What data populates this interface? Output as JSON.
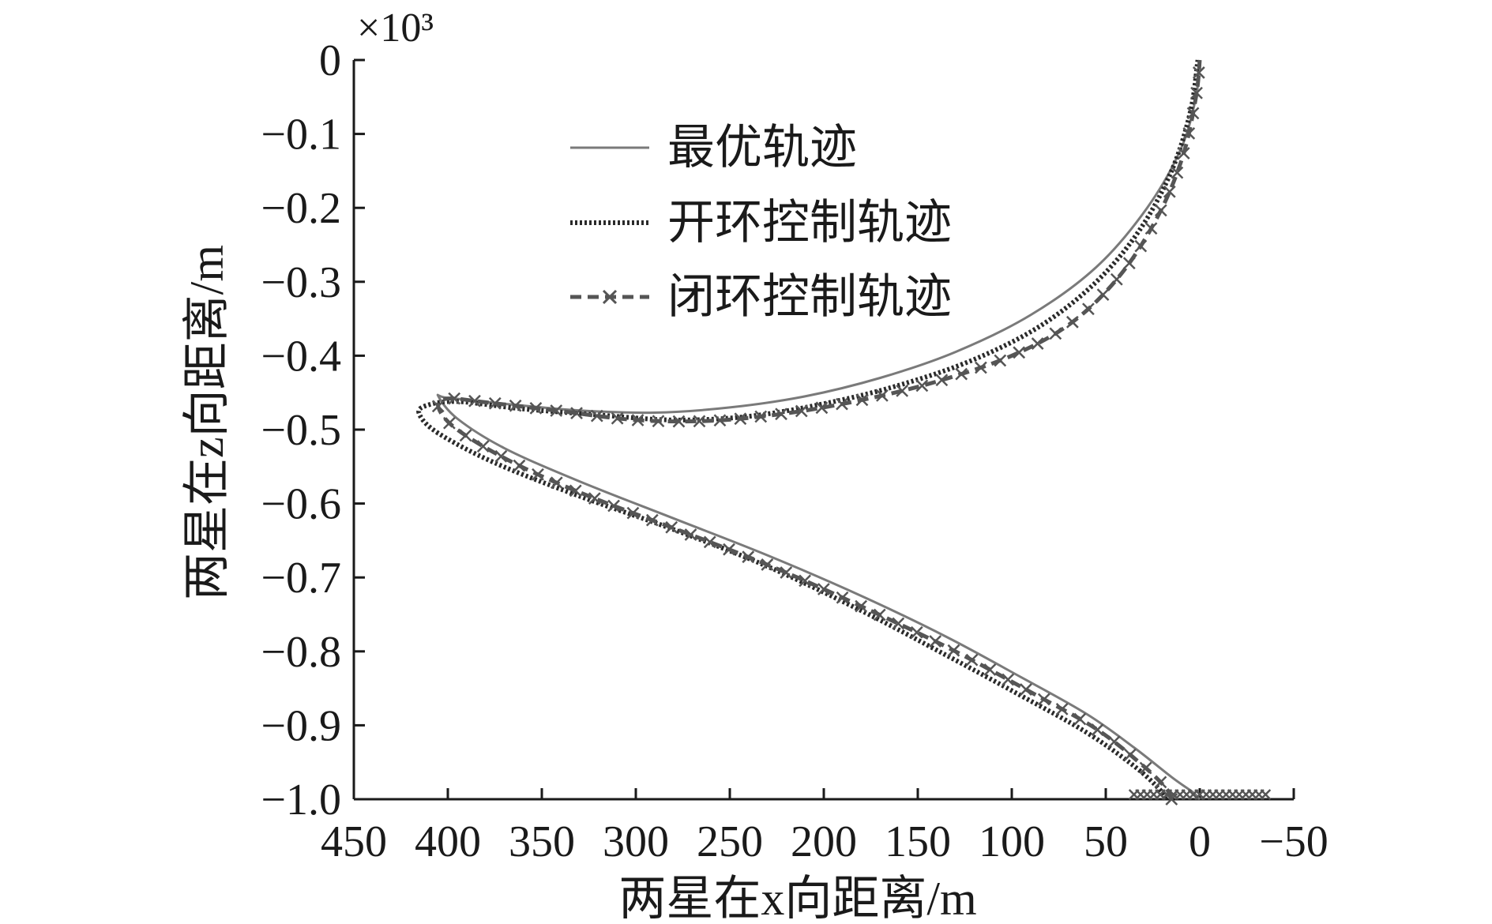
{
  "chart_data": {
    "type": "line",
    "xlabel": "两星在x向距离/m",
    "ylabel": "两星在z向距离/m",
    "y_exponent_label": "×10³",
    "xlim": [
      450,
      -50
    ],
    "ylim": [
      -1.0,
      0
    ],
    "x_reversed": true,
    "grid": false,
    "legend_position": "top-center",
    "x_ticks": [
      450,
      400,
      350,
      300,
      250,
      200,
      150,
      100,
      50,
      0,
      -50
    ],
    "x_tick_labels": [
      "450",
      "400",
      "350",
      "300",
      "250",
      "200",
      "150",
      "100",
      "50",
      "0",
      "−50"
    ],
    "y_ticks": [
      0,
      -0.1,
      -0.2,
      -0.3,
      -0.4,
      -0.5,
      -0.6,
      -0.7,
      -0.8,
      -0.9,
      -1.0
    ],
    "y_tick_labels": [
      "0",
      "−0.1",
      "−0.2",
      "−0.3",
      "−0.4",
      "−0.5",
      "−0.6",
      "−0.7",
      "−0.8",
      "−0.9",
      "−1.0"
    ],
    "series": [
      {
        "name": "最优轨迹",
        "style": "solid",
        "color": "#7a7a7a",
        "points": [
          [
            0,
            -1.0
          ],
          [
            4,
            -0.99
          ],
          [
            15,
            -0.97
          ],
          [
            35,
            -0.93
          ],
          [
            60,
            -0.885
          ],
          [
            95,
            -0.835
          ],
          [
            135,
            -0.78
          ],
          [
            180,
            -0.725
          ],
          [
            230,
            -0.67
          ],
          [
            280,
            -0.62
          ],
          [
            330,
            -0.57
          ],
          [
            370,
            -0.525
          ],
          [
            395,
            -0.485
          ],
          [
            405,
            -0.455
          ],
          [
            400,
            -0.457
          ],
          [
            370,
            -0.465
          ],
          [
            330,
            -0.474
          ],
          [
            290,
            -0.477
          ],
          [
            250,
            -0.47
          ],
          [
            210,
            -0.455
          ],
          [
            170,
            -0.43
          ],
          [
            130,
            -0.395
          ],
          [
            90,
            -0.345
          ],
          [
            55,
            -0.28
          ],
          [
            28,
            -0.2
          ],
          [
            10,
            -0.12
          ],
          [
            2,
            -0.05
          ],
          [
            0,
            0
          ]
        ]
      },
      {
        "name": "开环控制轨迹",
        "style": "dotted",
        "color": "#2a2a2a",
        "points": [
          [
            18,
            -1.0
          ],
          [
            22,
            -0.985
          ],
          [
            35,
            -0.955
          ],
          [
            60,
            -0.91
          ],
          [
            95,
            -0.86
          ],
          [
            135,
            -0.805
          ],
          [
            180,
            -0.745
          ],
          [
            230,
            -0.685
          ],
          [
            280,
            -0.635
          ],
          [
            330,
            -0.59
          ],
          [
            375,
            -0.545
          ],
          [
            405,
            -0.505
          ],
          [
            415,
            -0.48
          ],
          [
            412,
            -0.468
          ],
          [
            395,
            -0.462
          ],
          [
            360,
            -0.472
          ],
          [
            320,
            -0.48
          ],
          [
            280,
            -0.487
          ],
          [
            240,
            -0.482
          ],
          [
            200,
            -0.465
          ],
          [
            160,
            -0.44
          ],
          [
            120,
            -0.405
          ],
          [
            85,
            -0.36
          ],
          [
            55,
            -0.3
          ],
          [
            32,
            -0.23
          ],
          [
            15,
            -0.15
          ],
          [
            5,
            -0.07
          ],
          [
            1,
            0
          ]
        ]
      },
      {
        "name": "闭环控制轨迹",
        "style": "dashed-x",
        "color": "#555555",
        "points": [
          [
            15,
            -1.0
          ],
          [
            18,
            -0.985
          ],
          [
            30,
            -0.955
          ],
          [
            55,
            -0.905
          ],
          [
            90,
            -0.855
          ],
          [
            130,
            -0.8
          ],
          [
            175,
            -0.745
          ],
          [
            225,
            -0.688
          ],
          [
            275,
            -0.638
          ],
          [
            325,
            -0.59
          ],
          [
            365,
            -0.545
          ],
          [
            395,
            -0.5
          ],
          [
            405,
            -0.47
          ],
          [
            400,
            -0.458
          ],
          [
            380,
            -0.463
          ],
          [
            340,
            -0.475
          ],
          [
            300,
            -0.487
          ],
          [
            260,
            -0.488
          ],
          [
            220,
            -0.478
          ],
          [
            180,
            -0.46
          ],
          [
            140,
            -0.435
          ],
          [
            100,
            -0.4
          ],
          [
            68,
            -0.355
          ],
          [
            42,
            -0.29
          ],
          [
            22,
            -0.21
          ],
          [
            9,
            -0.13
          ],
          [
            2,
            -0.05
          ],
          [
            0,
            0
          ]
        ]
      }
    ]
  }
}
